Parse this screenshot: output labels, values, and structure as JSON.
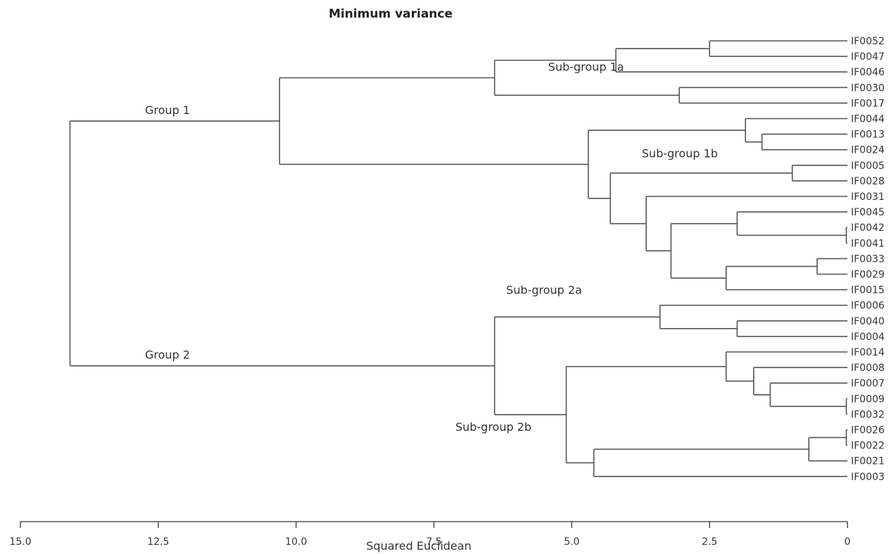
{
  "chart_data": {
    "type": "dendrogram",
    "title": "Minimum variance",
    "xlabel": "Squared Euclidean",
    "xlim": [
      15.0,
      0
    ],
    "ticks": [
      "15.0",
      "12.5",
      "10.0",
      "7.5",
      "5.0",
      "2.5",
      "0"
    ],
    "tick_values": [
      15.0,
      12.5,
      10.0,
      7.5,
      5.0,
      2.5,
      0
    ],
    "leaves": [
      "IF0052",
      "IF0047",
      "IF0046",
      "IF0030",
      "IF0017",
      "IF0044",
      "IF0013",
      "IF0024",
      "IF0005",
      "IF0028",
      "IF0031",
      "IF0045",
      "IF0042",
      "IF0041",
      "IF0033",
      "IF0029",
      "IF0015",
      "IF0006",
      "IF0040",
      "IF0004",
      "IF0014",
      "IF0008",
      "IF0007",
      "IF0009",
      "IF0032",
      "IF0026",
      "IF0022",
      "IF0021",
      "IF0003"
    ],
    "merges": [
      {
        "id": "a1",
        "children": [
          "IF0052",
          "IF0047"
        ],
        "height": 2.5
      },
      {
        "id": "a2",
        "children": [
          "a1",
          "IF0046"
        ],
        "height": 4.2
      },
      {
        "id": "a3",
        "children": [
          "IF0030",
          "IF0017"
        ],
        "height": 3.05
      },
      {
        "id": "a4",
        "children": [
          "a2",
          "a3"
        ],
        "height": 6.4,
        "label": "Sub-group 1a"
      },
      {
        "id": "b1",
        "children": [
          "IF0013",
          "IF0024"
        ],
        "height": 1.55
      },
      {
        "id": "b2",
        "children": [
          "IF0044",
          "b1"
        ],
        "height": 1.85
      },
      {
        "id": "b3",
        "children": [
          "IF0005",
          "IF0028"
        ],
        "height": 1.0
      },
      {
        "id": "b4",
        "children": [
          "IF0042",
          "IF0041"
        ],
        "height": 0.02
      },
      {
        "id": "b5",
        "children": [
          "IF0045",
          "b4"
        ],
        "height": 2.0
      },
      {
        "id": "b6",
        "children": [
          "IF0033",
          "IF0029"
        ],
        "height": 0.55
      },
      {
        "id": "b7",
        "children": [
          "b6",
          "IF0015"
        ],
        "height": 2.2
      },
      {
        "id": "b8",
        "children": [
          "b5",
          "b7"
        ],
        "height": 3.2
      },
      {
        "id": "b9",
        "children": [
          "IF0031",
          "b8"
        ],
        "height": 3.65
      },
      {
        "id": "b10",
        "children": [
          "b3",
          "b9"
        ],
        "height": 4.3
      },
      {
        "id": "b11",
        "children": [
          "b2",
          "b10"
        ],
        "height": 4.7,
        "label": "Sub-group 1b"
      },
      {
        "id": "g1",
        "children": [
          "a4",
          "b11"
        ],
        "height": 10.3,
        "label": "Group 1"
      },
      {
        "id": "c1",
        "children": [
          "IF0040",
          "IF0004"
        ],
        "height": 2.0
      },
      {
        "id": "c2",
        "children": [
          "IF0006",
          "c1"
        ],
        "height": 3.4
      },
      {
        "id": "d1",
        "children": [
          "IF0009",
          "IF0032"
        ],
        "height": 0.02
      },
      {
        "id": "d2",
        "children": [
          "IF0007",
          "d1"
        ],
        "height": 1.4
      },
      {
        "id": "d3",
        "children": [
          "IF0008",
          "d2"
        ],
        "height": 1.7
      },
      {
        "id": "d4",
        "children": [
          "IF0014",
          "d3"
        ],
        "height": 2.2
      },
      {
        "id": "d5",
        "children": [
          "IF0026",
          "IF0022"
        ],
        "height": 0.02
      },
      {
        "id": "d6",
        "children": [
          "d5",
          "IF0021"
        ],
        "height": 0.7
      },
      {
        "id": "d7",
        "children": [
          "d6",
          "IF0003"
        ],
        "height": 4.6
      },
      {
        "id": "d8",
        "children": [
          "d4",
          "d7"
        ],
        "height": 5.1
      },
      {
        "id": "g2",
        "children": [
          "c2",
          "d8"
        ],
        "height": 6.4,
        "label": "Group 2"
      },
      {
        "id": "root",
        "children": [
          "g1",
          "g2"
        ],
        "height": 14.1
      }
    ],
    "annotations": [
      {
        "text": "Sub-group 2a",
        "near": "c2"
      },
      {
        "text": "Sub-group 2b",
        "near": "d8"
      }
    ]
  }
}
